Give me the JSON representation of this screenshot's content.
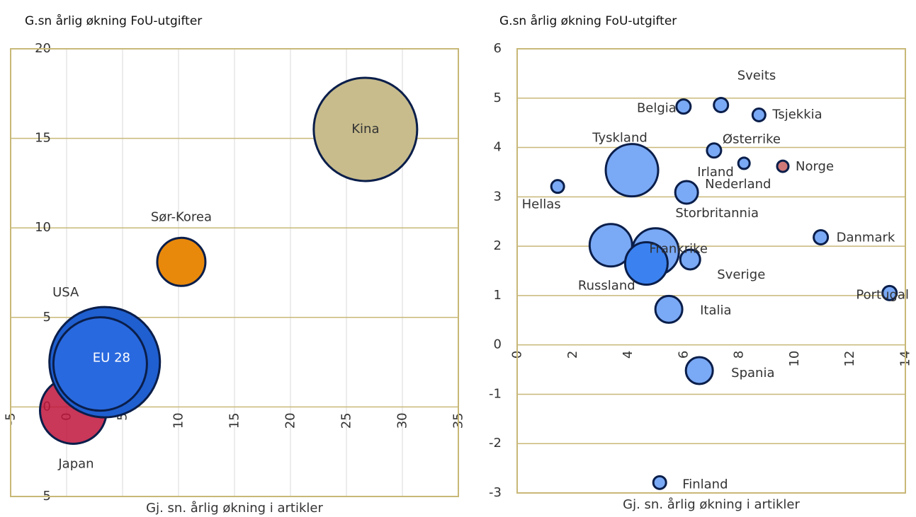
{
  "chart_data": [
    {
      "type": "bubble",
      "title": "G.sn årlig økning FoU-utgifter",
      "x_label": "Gj. sn. årlig økning i artikler",
      "xlim": [
        -5,
        35
      ],
      "xticks": [
        -5,
        0,
        5,
        10,
        15,
        20,
        25,
        30,
        35
      ],
      "ylim": [
        -5,
        20
      ],
      "yticks": [
        -5,
        0,
        5,
        10,
        15,
        20
      ],
      "xgrid": true,
      "ygrid": true,
      "points": [
        {
          "label": "Kina",
          "x": 26.7,
          "y": 15.5,
          "size": 73,
          "color": "#c8bc8c"
        },
        {
          "label": "Sør-Korea",
          "x": 10.25,
          "y": 8.1,
          "size": 34,
          "color": "#e8890c"
        },
        {
          "label": "Japan",
          "x": 0.6,
          "y": -0.2,
          "size": 47,
          "color": "#c0143c"
        },
        {
          "label": "USA",
          "x": 3.4,
          "y": 2.5,
          "size": 78,
          "color": "#1f5fd0"
        },
        {
          "label": "EU 28",
          "x": 3.0,
          "y": 2.4,
          "size": 66,
          "color": "#2a6ae0"
        }
      ]
    },
    {
      "type": "bubble",
      "title": "G.sn årlig økning FoU-utgifter",
      "x_label": "Gj. sn. årlig økning i artikler",
      "xlim": [
        0,
        14
      ],
      "xticks": [
        0,
        2,
        4,
        6,
        8,
        10,
        12,
        14
      ],
      "ylim": [
        -3,
        6
      ],
      "yticks": [
        -3,
        -2,
        -1,
        0,
        1,
        2,
        3,
        4,
        5,
        6
      ],
      "xgrid": false,
      "ygrid": true,
      "points": [
        {
          "label": "Sveits",
          "x": 7.35,
          "y": 4.86,
          "size": 10,
          "color": "#7aa9f5"
        },
        {
          "label": "Belgia",
          "x": 6.0,
          "y": 4.83,
          "size": 10,
          "color": "#7aa9f5"
        },
        {
          "label": "Tsjekkia",
          "x": 8.72,
          "y": 4.66,
          "size": 9,
          "color": "#7aa9f5"
        },
        {
          "label": "Østerrike",
          "x": 7.1,
          "y": 3.94,
          "size": 10,
          "color": "#7aa9f5"
        },
        {
          "label": "Irland",
          "x": 8.18,
          "y": 3.68,
          "size": 8,
          "color": "#7aa9f5"
        },
        {
          "label": "Norge",
          "x": 9.58,
          "y": 3.62,
          "size": 8,
          "color": "#d07878"
        },
        {
          "label": "Tyskland",
          "x": 4.14,
          "y": 3.54,
          "size": 37,
          "color": "#7aa9f5"
        },
        {
          "label": "Hellas",
          "x": 1.46,
          "y": 3.21,
          "size": 9,
          "color": "#7aa9f5"
        },
        {
          "label": "Nederland",
          "x": 6.11,
          "y": 3.09,
          "size": 16,
          "color": "#7aa9f5"
        },
        {
          "label": "Russland",
          "x": 3.38,
          "y": 2.02,
          "size": 30,
          "color": "#7aa9f5"
        },
        {
          "label": "Storbritannia",
          "x": 4.99,
          "y": 1.89,
          "size": 33,
          "color": "#7aa9f5"
        },
        {
          "label": "Frankrike",
          "x": 4.66,
          "y": 1.65,
          "size": 30,
          "color": "#3b82f0"
        },
        {
          "label": "Sverige",
          "x": 6.24,
          "y": 1.73,
          "size": 14,
          "color": "#7aa9f5"
        },
        {
          "label": "Danmark",
          "x": 10.95,
          "y": 2.18,
          "size": 10,
          "color": "#7aa9f5"
        },
        {
          "label": "Portugal",
          "x": 13.43,
          "y": 1.05,
          "size": 10,
          "color": "#7aa9f5"
        },
        {
          "label": "Italia",
          "x": 5.47,
          "y": 0.72,
          "size": 19,
          "color": "#7aa9f5"
        },
        {
          "label": "Spania",
          "x": 6.57,
          "y": -0.52,
          "size": 19,
          "color": "#7aa9f5"
        },
        {
          "label": "Finland",
          "x": 5.14,
          "y": -2.79,
          "size": 9,
          "color": "#7aa9f5"
        }
      ]
    }
  ]
}
